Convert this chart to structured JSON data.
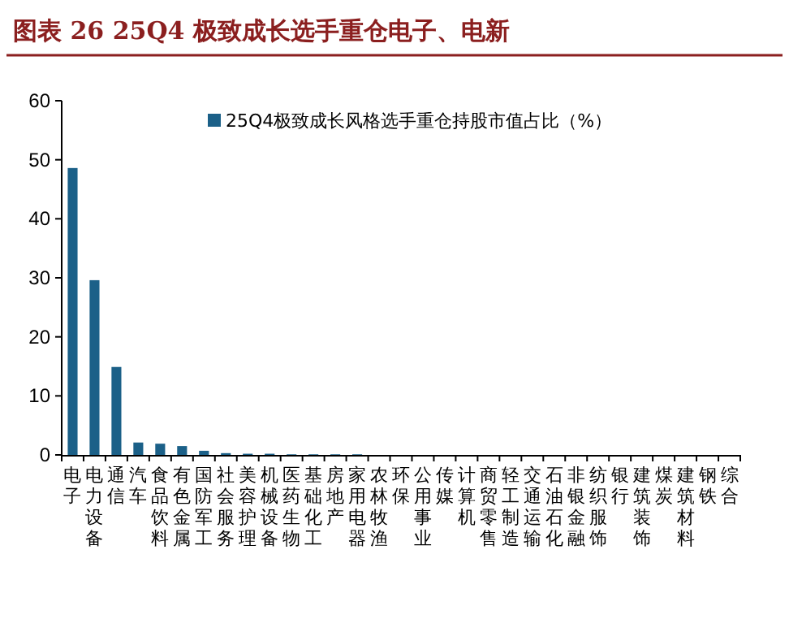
{
  "chart_data": {
    "type": "bar",
    "title": "图表 26    25Q4 极致成长选手重仓电子、电新",
    "categories": [
      "电子",
      "电力设备",
      "通信",
      "汽车",
      "食品饮料",
      "有色金属",
      "国防军工",
      "社会服务",
      "美容护理",
      "机械设备",
      "医药生物",
      "基础化工",
      "房地产",
      "家用电器",
      "农林牧渔",
      "环保",
      "公用事业",
      "传媒",
      "计算机",
      "商贸零售",
      "轻工制造",
      "交通运输",
      "石油石化",
      "非银金融",
      "纺织服饰",
      "银行",
      "建筑装饰",
      "煤炭",
      "建筑材料",
      "钢铁",
      "综合"
    ],
    "series": [
      {
        "name": "25Q4极致成长风格选手重仓持股市值占比（%）",
        "color": "#1b6088",
        "values": [
          48.6,
          29.6,
          14.9,
          2.1,
          1.9,
          1.5,
          0.7,
          0.3,
          0.2,
          0.2,
          0.1,
          0.1,
          0.1,
          0.1,
          0,
          0,
          0,
          0,
          0,
          0,
          0,
          0,
          0,
          0,
          0,
          0,
          0,
          0,
          0,
          0,
          0
        ]
      }
    ],
    "ylim": [
      0,
      60
    ],
    "yticks": [
      0,
      10,
      20,
      30,
      40,
      50,
      60
    ],
    "legend": "top",
    "grid": false
  }
}
